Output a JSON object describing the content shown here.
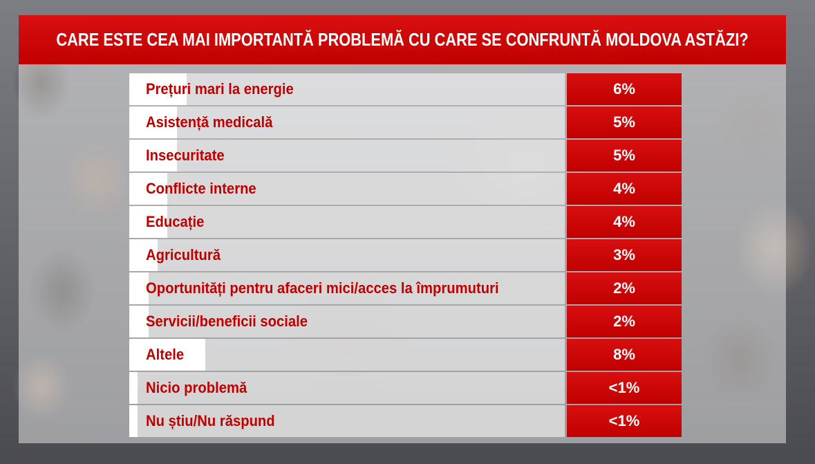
{
  "title": "CARE ESTE CEA MAI IMPORTANTĂ PROBLEMĂ CU CARE SE CONFRUNTĂ MOLDOVA ASTĂZI?",
  "colors": {
    "accent": "#c00000",
    "label_text": "#c00000",
    "value_text": "#ffffff"
  },
  "chart_data": {
    "type": "table",
    "title": "CARE ESTE CEA MAI IMPORTANTĂ PROBLEMĂ CU CARE SE CONFRUNTĂ MOLDOVA ASTĂZI?",
    "rows": [
      {
        "label": "Prețuri mari la energie",
        "value_text": "6%",
        "value": 6
      },
      {
        "label": "Asistență medicală",
        "value_text": "5%",
        "value": 5
      },
      {
        "label": "Insecuritate",
        "value_text": "5%",
        "value": 5
      },
      {
        "label": "Conflicte interne",
        "value_text": "4%",
        "value": 4
      },
      {
        "label": "Educație",
        "value_text": "4%",
        "value": 4
      },
      {
        "label": "Agricultură",
        "value_text": "3%",
        "value": 3
      },
      {
        "label": "Oportunități pentru afaceri mici/acces la împrumuturi",
        "value_text": "2%",
        "value": 2
      },
      {
        "label": "Servicii/beneficii sociale",
        "value_text": "2%",
        "value": 2
      },
      {
        "label": "Altele",
        "value_text": "8%",
        "value": 8
      },
      {
        "label": "Nicio problemă",
        "value_text": "<1%",
        "value": 0.5
      },
      {
        "label": "Nu știu/Nu răspund",
        "value_text": "<1%",
        "value": 0.5
      }
    ]
  }
}
